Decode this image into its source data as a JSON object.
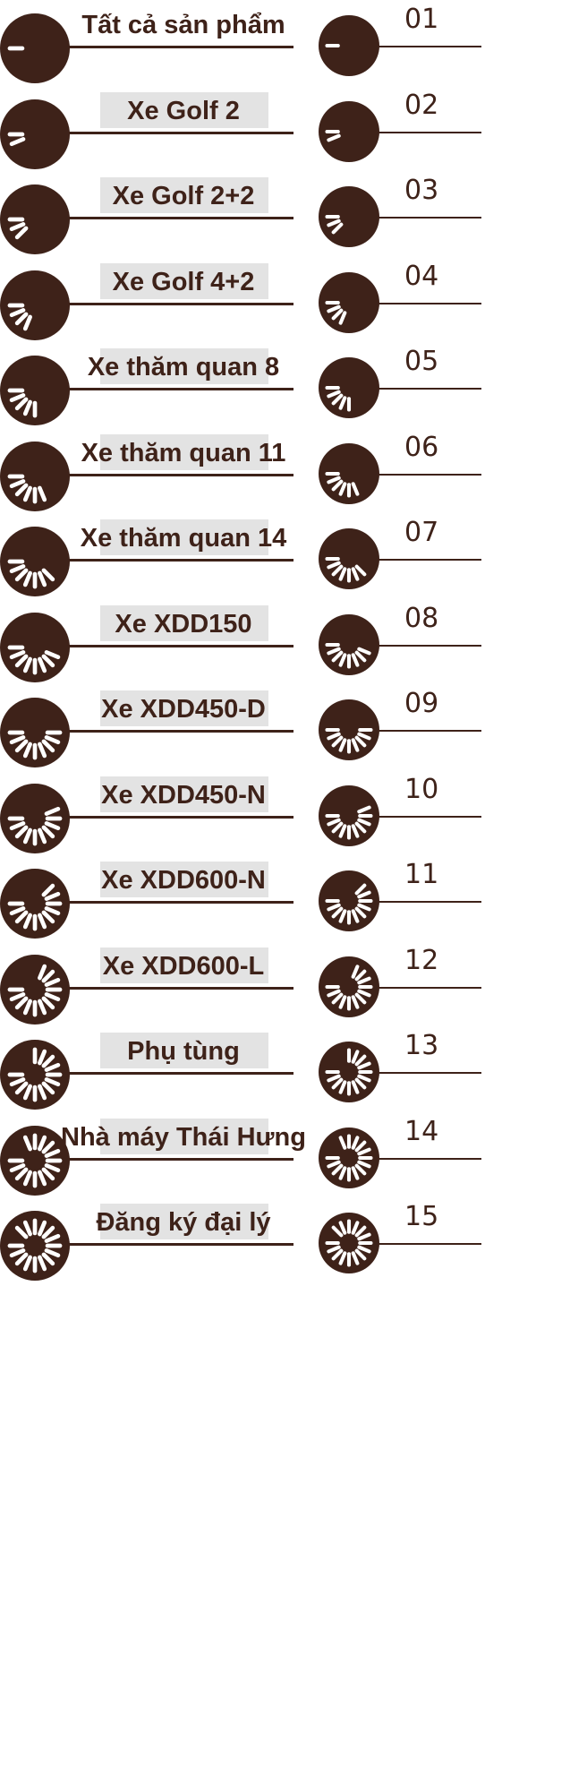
{
  "colors": {
    "brand": "#3e2219",
    "highlight": "#e3e3e3",
    "background": "#ffffff"
  },
  "icon": "loading-spinner-icon",
  "menu": {
    "items": [
      {
        "label": "Tất cả sản phẩm",
        "number": "01",
        "spokes": 1
      },
      {
        "label": "Xe Golf 2",
        "number": "02",
        "spokes": 2
      },
      {
        "label": "Xe Golf 2+2",
        "number": "03",
        "spokes": 3
      },
      {
        "label": "Xe Golf 4+2",
        "number": "04",
        "spokes": 4
      },
      {
        "label": "Xe thăm quan 8",
        "number": "05",
        "spokes": 5
      },
      {
        "label": "Xe thăm quan 11",
        "number": "06",
        "spokes": 6
      },
      {
        "label": "Xe thăm quan 14",
        "number": "07",
        "spokes": 7
      },
      {
        "label": "Xe XDD150",
        "number": "08",
        "spokes": 8
      },
      {
        "label": "Xe XDD450-D",
        "number": "09",
        "spokes": 9
      },
      {
        "label": "Xe XDD450-N",
        "number": "10",
        "spokes": 10
      },
      {
        "label": "Xe XDD600-N",
        "number": "11",
        "spokes": 11
      },
      {
        "label": "Xe XDD600-L",
        "number": "12",
        "spokes": 12
      },
      {
        "label": "Phụ tùng",
        "number": "13",
        "spokes": 13
      },
      {
        "label": "Nhà máy Thái Hưng",
        "number": "14",
        "spokes": 14
      },
      {
        "label": "Đăng ký đại lý",
        "number": "15",
        "spokes": 15
      }
    ]
  }
}
